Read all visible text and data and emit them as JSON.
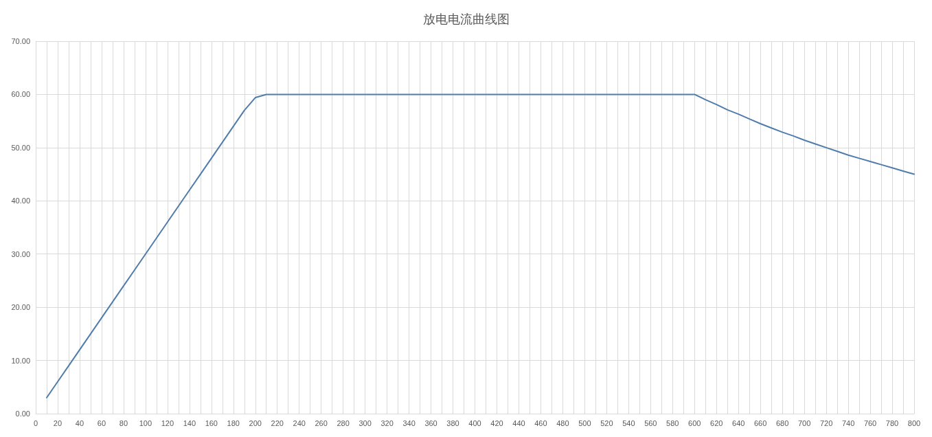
{
  "chart_data": {
    "type": "line",
    "title": "放电电流曲线图",
    "x": [
      10,
      20,
      30,
      40,
      50,
      60,
      70,
      80,
      90,
      100,
      110,
      120,
      130,
      140,
      150,
      160,
      170,
      180,
      190,
      200,
      210,
      220,
      230,
      240,
      250,
      260,
      270,
      280,
      290,
      300,
      310,
      320,
      330,
      340,
      350,
      360,
      370,
      380,
      390,
      400,
      410,
      420,
      430,
      440,
      450,
      460,
      470,
      480,
      490,
      500,
      510,
      520,
      530,
      540,
      550,
      560,
      570,
      580,
      590,
      600,
      610,
      620,
      630,
      640,
      650,
      660,
      670,
      680,
      690,
      700,
      710,
      720,
      730,
      740,
      750,
      760,
      770,
      780,
      790,
      800
    ],
    "series": [
      {
        "color": "#4f7cac",
        "values": [
          3,
          6,
          9,
          12,
          15,
          18,
          21,
          24,
          27,
          30,
          33,
          36,
          39,
          42,
          45,
          48,
          51,
          54,
          57,
          59.4,
          60,
          60,
          60,
          60,
          60,
          60,
          60,
          60,
          60,
          60,
          60,
          60,
          60,
          60,
          60,
          60,
          60,
          60,
          60,
          60,
          60,
          60,
          60,
          60,
          60,
          60,
          60,
          60,
          60,
          60,
          60,
          60,
          60,
          60,
          60,
          60,
          60,
          60,
          60,
          60,
          59,
          58.1,
          57.1,
          56.3,
          55.4,
          54.5,
          53.7,
          52.9,
          52.2,
          51.4,
          50.7,
          50,
          49.3,
          48.6,
          48,
          47.4,
          46.8,
          46.2,
          45.6,
          45
        ]
      }
    ],
    "xlim": [
      0,
      800
    ],
    "xticks": [
      0,
      {
        "value": 10,
        "label": null
      },
      20,
      {
        "value": 30,
        "label": null
      },
      40,
      {
        "value": 50,
        "label": null
      },
      60,
      {
        "value": 70,
        "label": null
      },
      80,
      {
        "value": 90,
        "label": null
      },
      100,
      {
        "value": 110,
        "label": null
      },
      120,
      {
        "value": 130,
        "label": null
      },
      140,
      {
        "value": 150,
        "label": null
      },
      160,
      {
        "value": 170,
        "label": null
      },
      180,
      {
        "value": 190,
        "label": null
      },
      200,
      {
        "value": 210,
        "label": null
      },
      220,
      {
        "value": 230,
        "label": null
      },
      240,
      {
        "value": 250,
        "label": null
      },
      260,
      {
        "value": 270,
        "label": null
      },
      280,
      {
        "value": 290,
        "label": null
      },
      300,
      {
        "value": 310,
        "label": null
      },
      320,
      {
        "value": 330,
        "label": null
      },
      340,
      {
        "value": 350,
        "label": null
      },
      360,
      {
        "value": 370,
        "label": null
      },
      380,
      {
        "value": 390,
        "label": null
      },
      400,
      {
        "value": 410,
        "label": null
      },
      420,
      {
        "value": 430,
        "label": null
      },
      440,
      {
        "value": 450,
        "label": null
      },
      460,
      {
        "value": 470,
        "label": null
      },
      480,
      {
        "value": 490,
        "label": null
      },
      500,
      {
        "value": 510,
        "label": null
      },
      520,
      {
        "value": 530,
        "label": null
      },
      540,
      {
        "value": 550,
        "label": null
      },
      560,
      {
        "value": 570,
        "label": null
      },
      580,
      {
        "value": 590,
        "label": null
      },
      600,
      {
        "value": 610,
        "label": null
      },
      620,
      {
        "value": 630,
        "label": null
      },
      640,
      {
        "value": 650,
        "label": null
      },
      660,
      {
        "value": 670,
        "label": null
      },
      680,
      {
        "value": 690,
        "label": null
      },
      700,
      {
        "value": 710,
        "label": null
      },
      720,
      {
        "value": 730,
        "label": null
      },
      740,
      {
        "value": 750,
        "label": null
      },
      760,
      {
        "value": 770,
        "label": null
      },
      780,
      {
        "value": 790,
        "label": null
      },
      800
    ],
    "ylim": [
      0,
      70
    ],
    "yticks": [
      {
        "value": 0,
        "label": "0.00"
      },
      {
        "value": 10,
        "label": "10.00"
      },
      {
        "value": 20,
        "label": "20.00"
      },
      {
        "value": 30,
        "label": "30.00"
      },
      {
        "value": 40,
        "label": "40.00"
      },
      {
        "value": 50,
        "label": "50.00"
      },
      {
        "value": 60,
        "label": "60.00"
      },
      {
        "value": 70,
        "label": "70.00"
      }
    ],
    "grid": true,
    "marker": "none",
    "line_style": "solid"
  }
}
